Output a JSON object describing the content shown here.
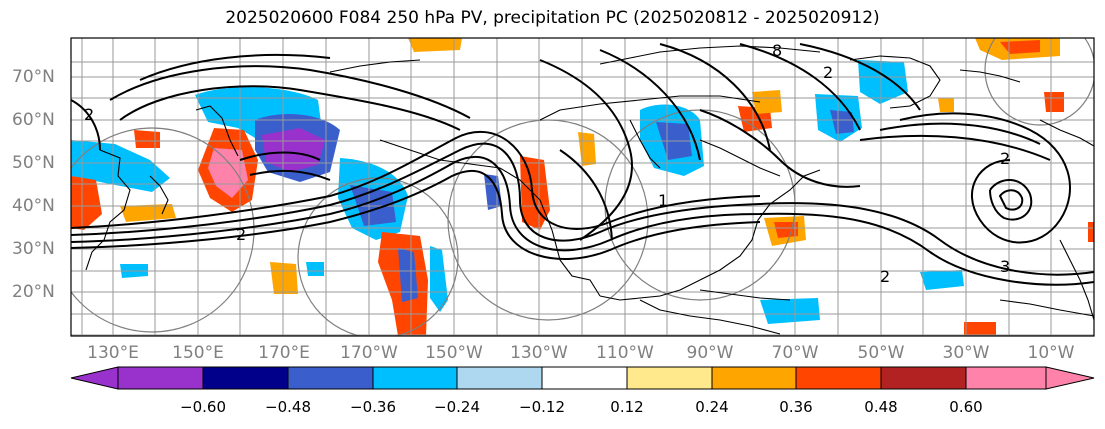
{
  "title": "2025020600 F084 250 hPa PV, precipitation PC (2025020812 - 2025020912)",
  "lat_labels": [
    "70°N",
    "60°N",
    "50°N",
    "40°N",
    "30°N",
    "20°N"
  ],
  "lon_labels": [
    "130°E",
    "150°E",
    "170°E",
    "170°W",
    "150°W",
    "130°W",
    "110°W",
    "90°W",
    "70°W",
    "50°W",
    "30°W",
    "10°W"
  ],
  "colorbar": {
    "ticks": [
      "−0.60",
      "−0.48",
      "−0.36",
      "−0.24",
      "−0.12",
      "0.12",
      "0.24",
      "0.36",
      "0.48",
      "0.60"
    ],
    "colors": [
      "#9932cc",
      "#00008b",
      "#3a5fcd",
      "#00bfff",
      "#add8f0",
      "#ffffff",
      "#ffe98c",
      "#ffa500",
      "#ff4500",
      "#b22222",
      "#ff82ab"
    ]
  },
  "contour_labels": [
    "2",
    "2",
    "2",
    "2",
    "2",
    "3",
    "8",
    "1"
  ]
}
